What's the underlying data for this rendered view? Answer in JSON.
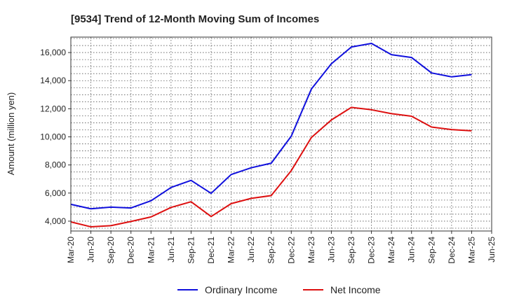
{
  "chart_data": {
    "type": "line",
    "title": "[9534]  Trend of 12-Month Moving Sum of Incomes",
    "xlabel": "",
    "ylabel": "Amount (million yen)",
    "categories": [
      "Mar-20",
      "Jun-20",
      "Sep-20",
      "Dec-20",
      "Mar-21",
      "Jun-21",
      "Sep-21",
      "Dec-21",
      "Mar-22",
      "Jun-22",
      "Sep-22",
      "Dec-22",
      "Mar-23",
      "Jun-23",
      "Sep-23",
      "Dec-23",
      "Mar-24",
      "Jun-24",
      "Sep-24",
      "Dec-24",
      "Mar-25",
      "Jun-25"
    ],
    "y_ticks": [
      4000,
      6000,
      8000,
      10000,
      12000,
      14000,
      16000
    ],
    "y_tick_labels": [
      "4,000",
      "6,000",
      "8,000",
      "10,000",
      "12,000",
      "14,000",
      "16,000"
    ],
    "ylim": [
      3300,
      17100
    ],
    "grid": true,
    "legend_position": "bottom",
    "series": [
      {
        "name": "Ordinary Income",
        "color": "#1010dd",
        "values": [
          5200,
          4880,
          5000,
          4940,
          5450,
          6400,
          6900,
          5980,
          7320,
          7800,
          8130,
          10050,
          13400,
          15200,
          16400,
          16650,
          15850,
          15650,
          14550,
          14270,
          14430,
          null
        ]
      },
      {
        "name": "Net Income",
        "color": "#dd1010",
        "values": [
          3950,
          3600,
          3680,
          3980,
          4300,
          4980,
          5380,
          4330,
          5250,
          5620,
          5820,
          7600,
          9950,
          11200,
          12100,
          11930,
          11650,
          11470,
          10700,
          10520,
          10430,
          null
        ]
      }
    ]
  }
}
